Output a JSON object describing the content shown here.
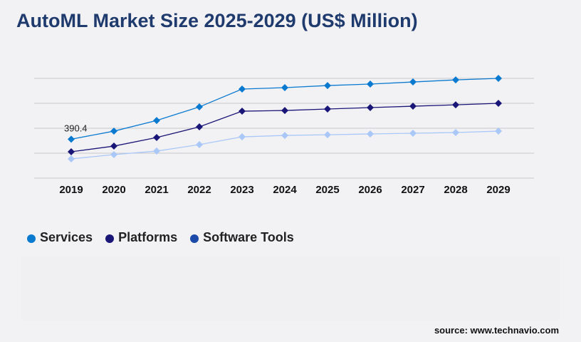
{
  "chart_data": {
    "type": "line",
    "title": "AutoML Market Size 2025-2029 (US$ Million)",
    "categories": [
      "2019",
      "2020",
      "2021",
      "2022",
      "2023",
      "2024",
      "2025",
      "2026",
      "2027",
      "2028",
      "2029"
    ],
    "series": [
      {
        "name": "Services",
        "color": "#0a7ad0",
        "values": [
          390.4,
          471,
          578,
          714,
          893,
          907,
          928,
          943,
          964,
          985,
          1000
        ]
      },
      {
        "name": "Platforms",
        "color": "#1a1677",
        "values": [
          264,
          321,
          407,
          514,
          671,
          678,
          693,
          707,
          721,
          735,
          750
        ]
      },
      {
        "name": "Software Tools",
        "color": "#a9c8f8",
        "legend_color": "#1c4aa8",
        "values": [
          193,
          236,
          271,
          336,
          414,
          428,
          435,
          443,
          450,
          457,
          471
        ]
      }
    ],
    "data_labels": [
      {
        "series": "Services",
        "category": "2019",
        "text": "390.4"
      }
    ],
    "ylim": [
      0,
      1250
    ],
    "grid": true,
    "y_tick_labels_shown": false,
    "legend_position": "bottom-left"
  },
  "source": "source: www.technavio.com"
}
